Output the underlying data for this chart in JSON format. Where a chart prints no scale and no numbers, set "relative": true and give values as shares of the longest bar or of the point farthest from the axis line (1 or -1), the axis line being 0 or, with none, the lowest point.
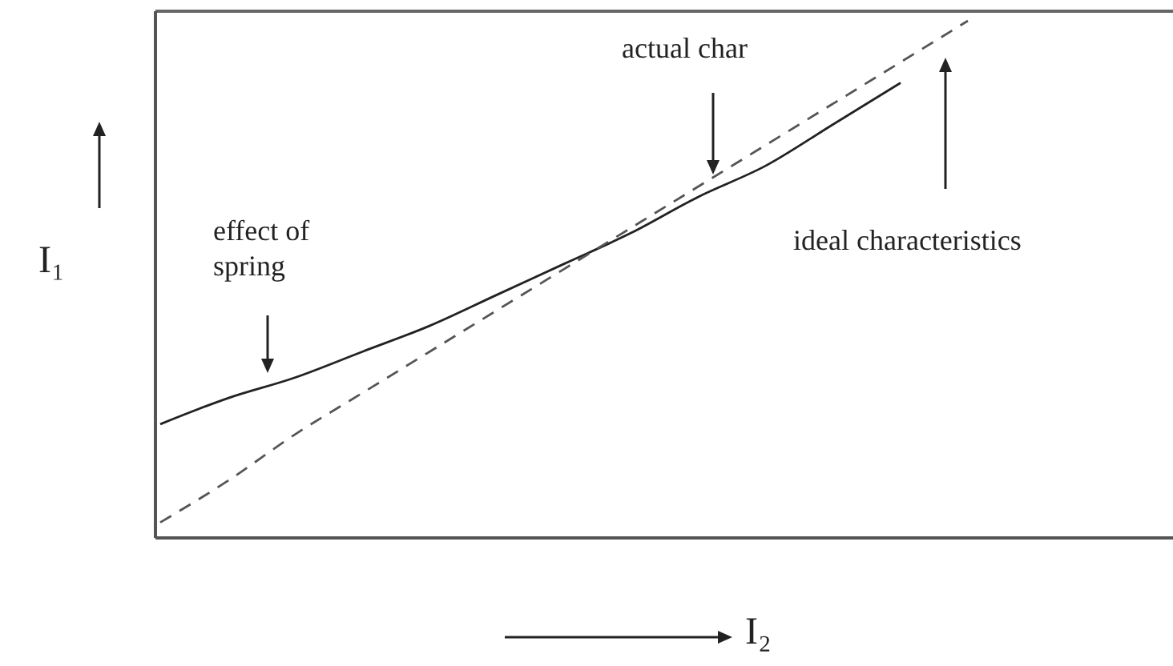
{
  "chart_data": {
    "type": "line",
    "relative": true,
    "xlabel": "I₂",
    "ylabel": "I₁",
    "categories": [
      null,
      null,
      null,
      null,
      null,
      null,
      null,
      null,
      null,
      null,
      null,
      null,
      null
    ],
    "series": [
      {
        "color": "#222222",
        "line_style": "solid",
        "values": [
          0.22,
          0.27,
          0.31,
          0.36,
          0.41,
          0.47,
          0.53,
          0.59,
          0.66,
          0.72,
          0.8,
          0.88,
          null
        ]
      },
      {
        "color": "#555555",
        "line_style": "dashed",
        "values": [
          0.03,
          0.11,
          0.2,
          0.28,
          0.36,
          0.44,
          0.52,
          0.6,
          0.68,
          0.76,
          0.84,
          0.92,
          1
        ]
      }
    ],
    "annotations": [
      "actual char",
      "ideal characteristics",
      "effect of spring"
    ],
    "marker": "none"
  }
}
